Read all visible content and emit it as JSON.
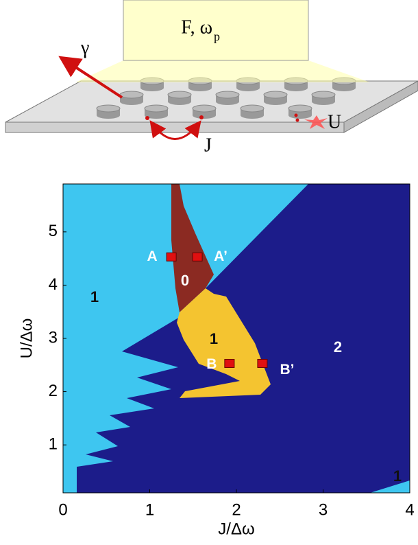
{
  "schematic": {
    "pump_label": "F, ω",
    "pump_subscript": "p",
    "loss_label": "γ",
    "hopping_label": "J",
    "interaction_label": "U"
  },
  "chart_data": {
    "type": "scatter",
    "xlabel": "J/Δω",
    "ylabel": "U/Δω",
    "xlim": [
      0,
      4
    ],
    "ylim": [
      0.1,
      5.9
    ],
    "xticks": [
      0,
      1,
      2,
      3,
      4
    ],
    "yticks": [
      1,
      2,
      3,
      4,
      5
    ],
    "series": [
      {
        "color": "#e01010",
        "x": [
          1.25,
          1.55,
          1.92,
          2.3
        ],
        "values": [
          4.53,
          4.53,
          2.53,
          2.53
        ],
        "point_labels": [
          "A",
          "A’",
          "B",
          "B’"
        ]
      }
    ],
    "region_labels": [
      "1",
      "0",
      "1",
      "2",
      "1"
    ]
  }
}
